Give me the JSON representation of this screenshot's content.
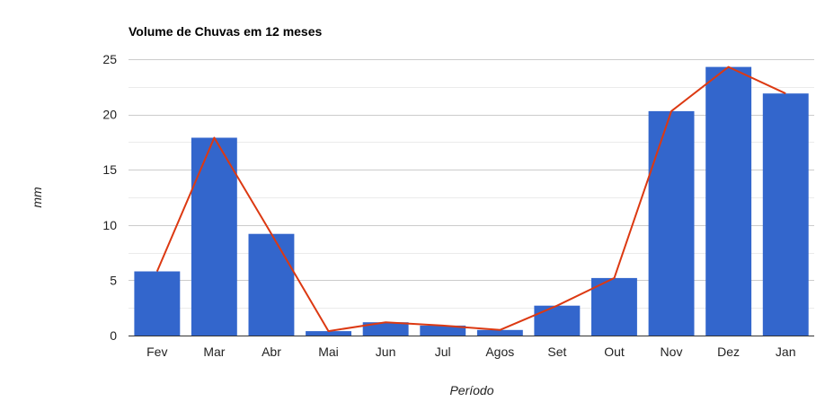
{
  "chart_data": {
    "type": "bar",
    "title": "Volume de Chuvas em 12 meses",
    "xlabel": "Período",
    "ylabel": "mm",
    "categories": [
      "Fev",
      "Mar",
      "Abr",
      "Mai",
      "Jun",
      "Jul",
      "Agos",
      "Set",
      "Out",
      "Nov",
      "Dez",
      "Jan"
    ],
    "series": [
      {
        "type": "bar",
        "color": "#3366cc",
        "values": [
          5.8,
          17.9,
          9.2,
          0.4,
          1.2,
          0.9,
          0.5,
          2.7,
          5.2,
          20.3,
          24.3,
          21.9
        ]
      },
      {
        "type": "line",
        "color": "#dc3912",
        "values": [
          5.8,
          17.9,
          9.2,
          0.4,
          1.2,
          0.9,
          0.5,
          2.7,
          5.2,
          20.3,
          24.3,
          21.9
        ]
      }
    ],
    "yticks": [
      0,
      5,
      10,
      15,
      20,
      25
    ],
    "ylim": [
      0,
      25
    ],
    "grid": true,
    "legend": "none"
  }
}
